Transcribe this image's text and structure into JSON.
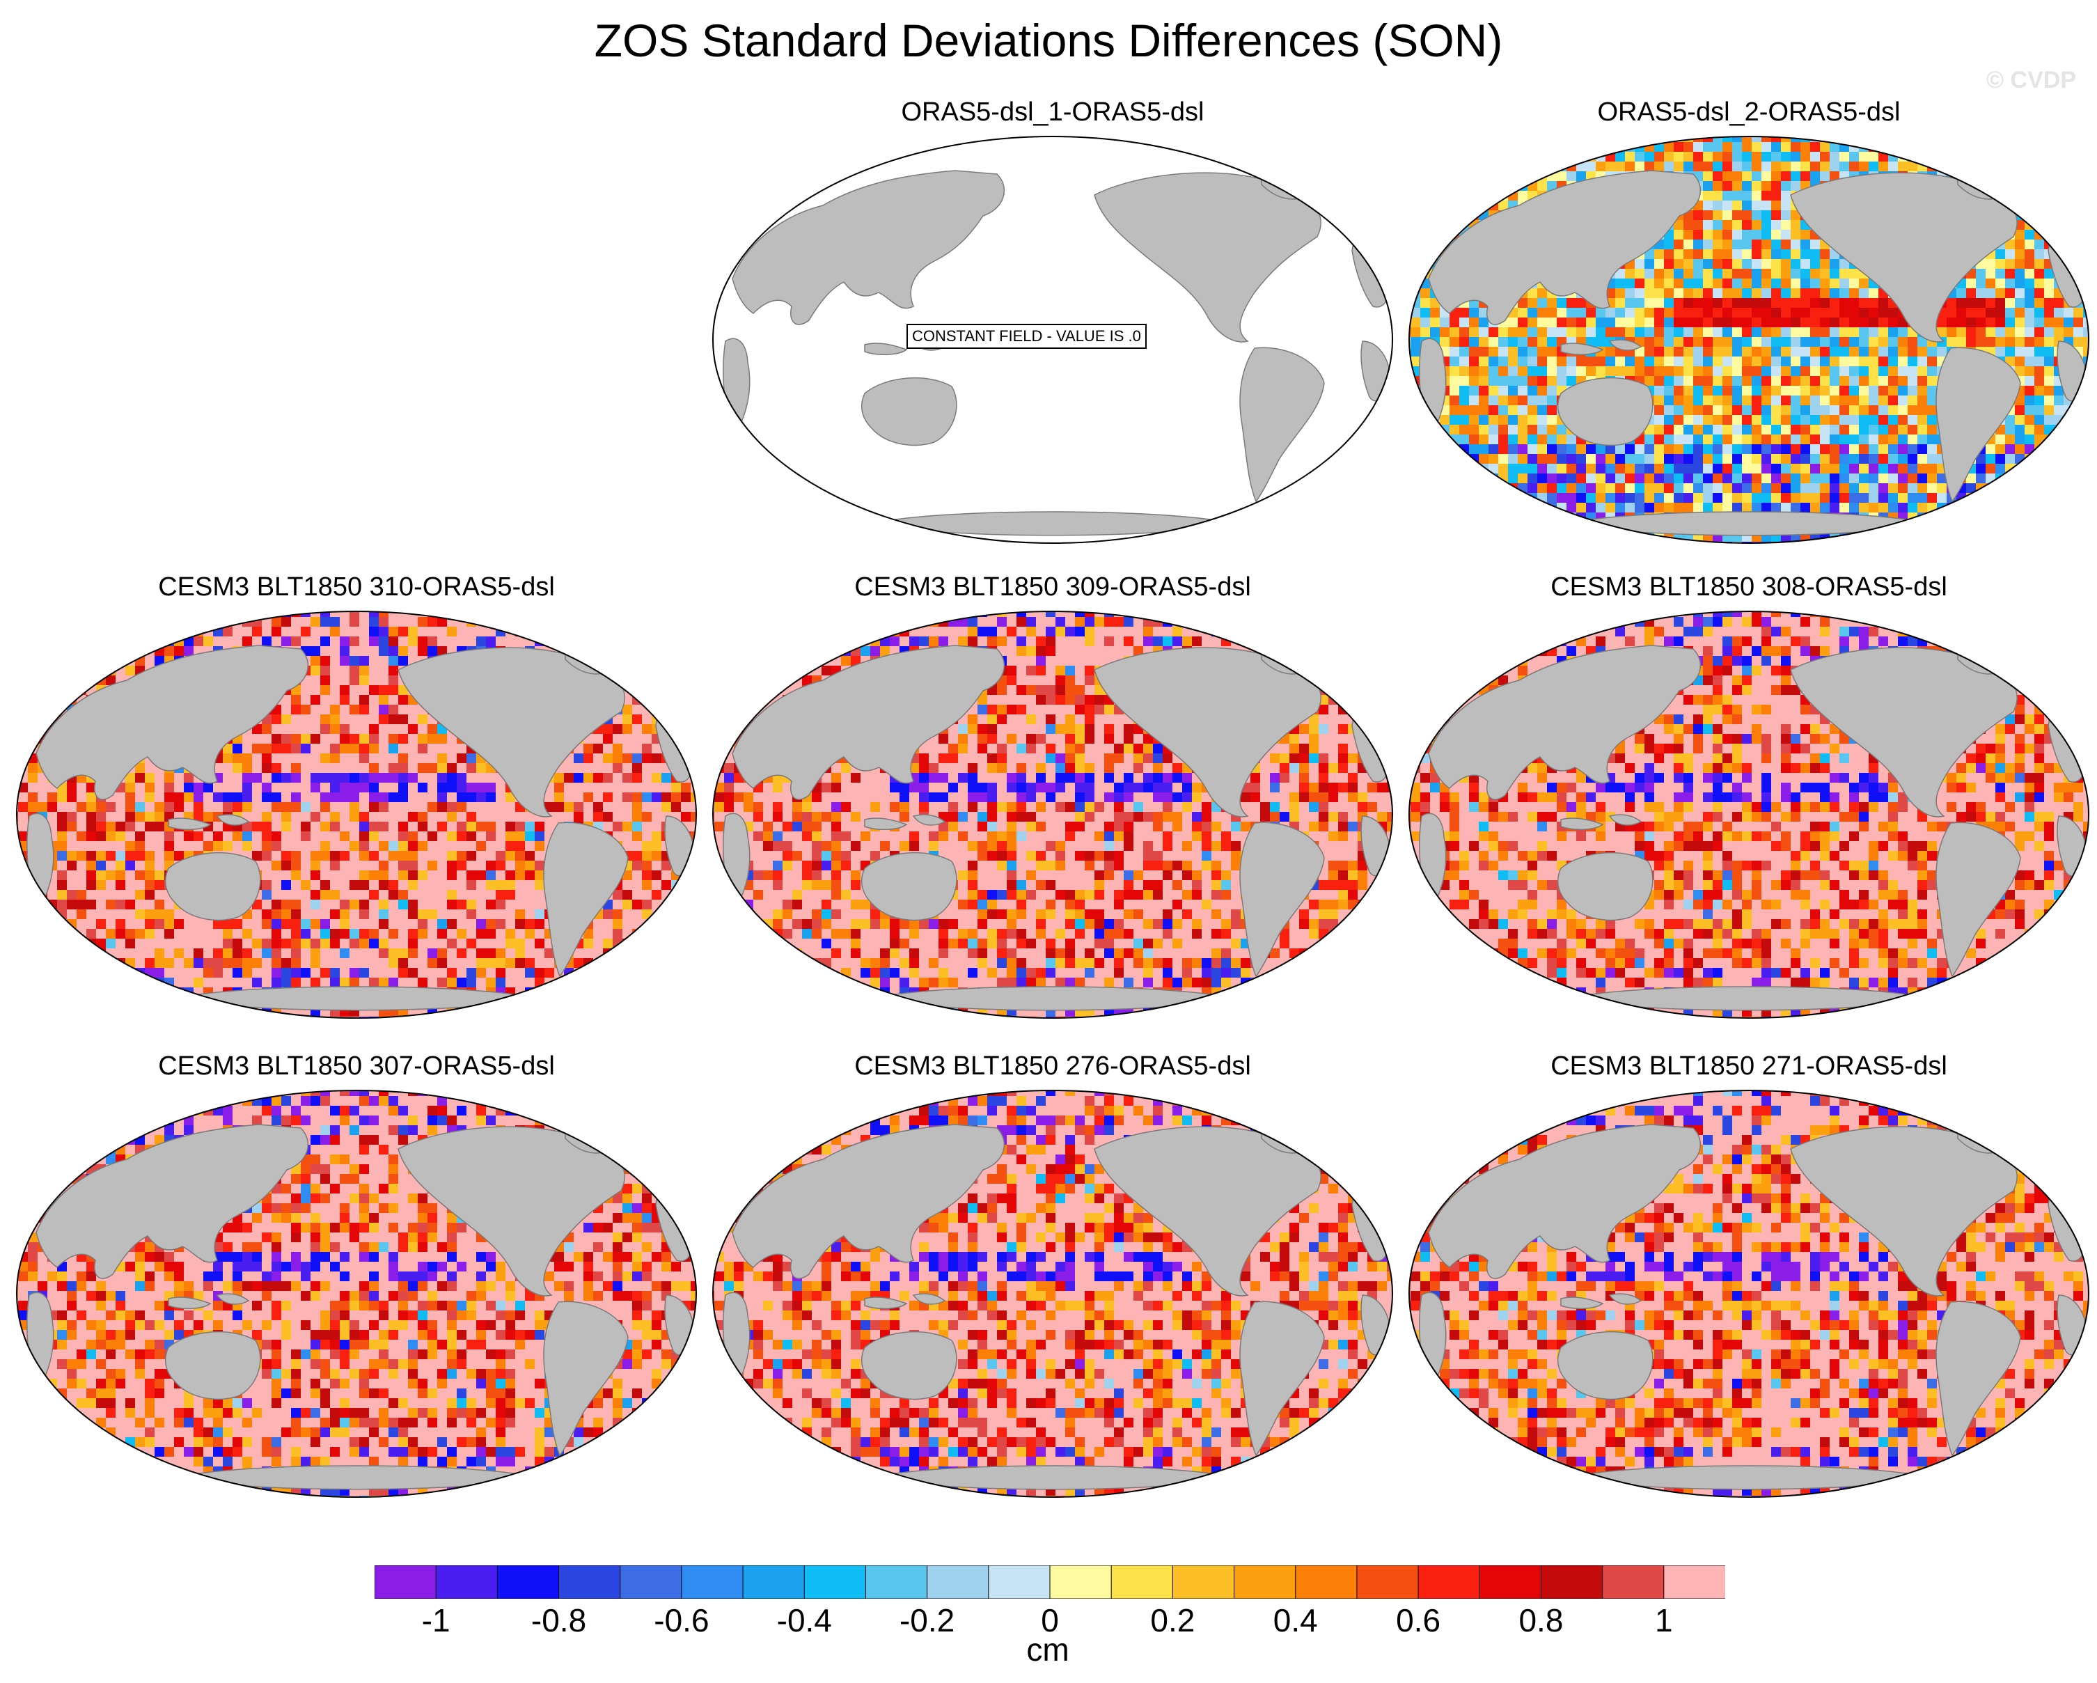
{
  "title": "ZOS Standard Deviations Differences (SON)",
  "credit": "© CVDP",
  "panels": [
    {
      "title": "ORAS5-dsl_1-ORAS5-dsl",
      "constant": true,
      "constant_label": "CONSTANT FIELD - VALUE IS .0"
    },
    {
      "title": "ORAS5-dsl_2-ORAS5-dsl",
      "constant": false
    },
    {
      "title": "CESM3 BLT1850 310-ORAS5-dsl",
      "constant": false
    },
    {
      "title": "CESM3 BLT1850 309-ORAS5-dsl",
      "constant": false
    },
    {
      "title": "CESM3 BLT1850 308-ORAS5-dsl",
      "constant": false
    },
    {
      "title": "CESM3 BLT1850 307-ORAS5-dsl",
      "constant": false
    },
    {
      "title": "CESM3 BLT1850 276-ORAS5-dsl",
      "constant": false
    },
    {
      "title": "CESM3 BLT1850 271-ORAS5-dsl",
      "constant": false
    }
  ],
  "colorbar": {
    "unit": "cm",
    "tick_labels": [
      "-1",
      "-0.8",
      "-0.6",
      "-0.4",
      "-0.2",
      "0",
      "0.2",
      "0.4",
      "0.6",
      "0.8",
      "1"
    ],
    "colors": [
      "#8a1ee8",
      "#4a1ef0",
      "#1010f8",
      "#2c46e2",
      "#3d6de6",
      "#2e8cf2",
      "#1aa2f0",
      "#10bcf4",
      "#58c6ee",
      "#9ed2ee",
      "#c6e4f6",
      "#fefaa0",
      "#fde24a",
      "#fcc026",
      "#fca010",
      "#fc8008",
      "#f45010",
      "#fa2010",
      "#e40606",
      "#c40a0a",
      "#e04848",
      "#fcb4b4"
    ]
  },
  "colors": {
    "land": "#bdbdbd",
    "coast": "#7a7a7a"
  }
}
